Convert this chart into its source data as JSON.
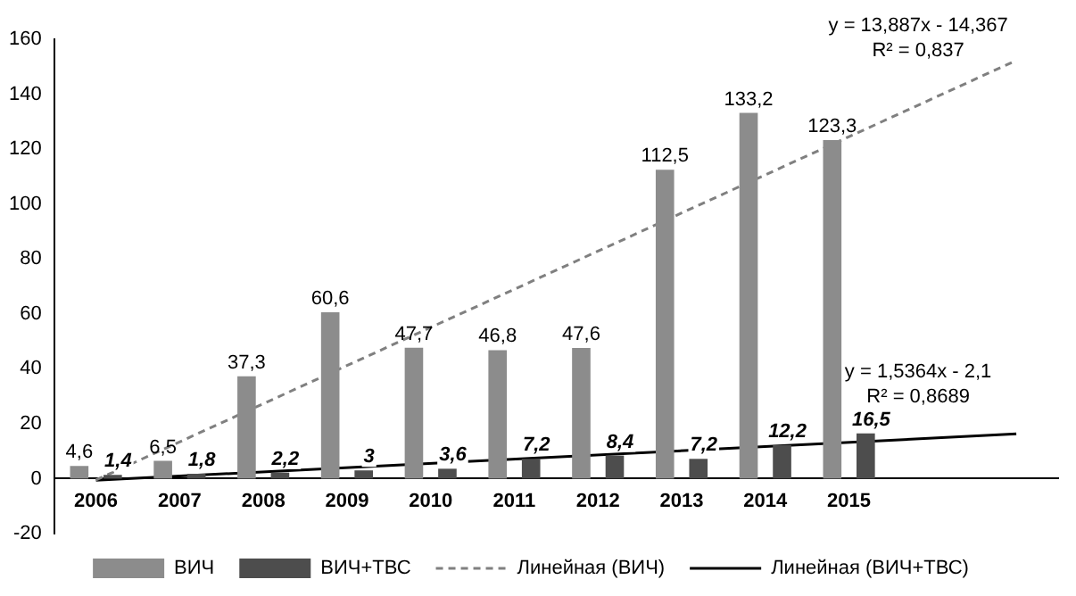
{
  "chart_data": {
    "type": "bar",
    "categories": [
      "2006",
      "2007",
      "2008",
      "2009",
      "2010",
      "2011",
      "2012",
      "2013",
      "2014",
      "2015",
      null,
      null
    ],
    "series": [
      {
        "name": "ВИЧ",
        "color": "#8c8c8c",
        "values": [
          4.6,
          6.5,
          37.3,
          60.6,
          47.7,
          46.8,
          47.6,
          112.5,
          133.2,
          123.3,
          null,
          null
        ],
        "value_labels": [
          "4,6",
          "6,5",
          "37,3",
          "60,6",
          "47,7",
          "46,8",
          "47,6",
          "112,5",
          "133,2",
          "123,3",
          null,
          null
        ]
      },
      {
        "name": "ВИЧ+ТВС",
        "color": "#4d4d4d",
        "values": [
          1.4,
          1.8,
          2.2,
          3,
          3.6,
          7.2,
          8.4,
          7.2,
          12.2,
          16.5,
          null,
          null
        ],
        "value_labels": [
          "1,4",
          "1,8",
          "2,2",
          "3",
          "3,6",
          "7,2",
          "8,4",
          "7,2",
          "12,2",
          "16,5",
          null,
          null
        ]
      },
      {
        "name": "Линейная (ВИЧ)",
        "type": "line",
        "color": "#808080",
        "line_style": "dashed",
        "values": [
          -0.5,
          null,
          null,
          null,
          null,
          null,
          null,
          null,
          null,
          null,
          null,
          152.3
        ]
      },
      {
        "name": "Линейная (ВИЧ+ТВС)",
        "type": "line",
        "color": "#000000",
        "line_style": "solid",
        "values": [
          -0.6,
          null,
          null,
          null,
          null,
          null,
          null,
          null,
          null,
          null,
          null,
          16.3
        ]
      }
    ],
    "ylim": [
      -20,
      160
    ],
    "yticks": [
      -20,
      0,
      20,
      40,
      60,
      80,
      100,
      120,
      140,
      160
    ],
    "grid": false,
    "legend": "bottom",
    "marker": "none",
    "annotations": [
      "y = 13,887x - 14,367\nR² = 0,837",
      "y = 1,5364x - 2,1\nR² = 0,8689"
    ]
  }
}
